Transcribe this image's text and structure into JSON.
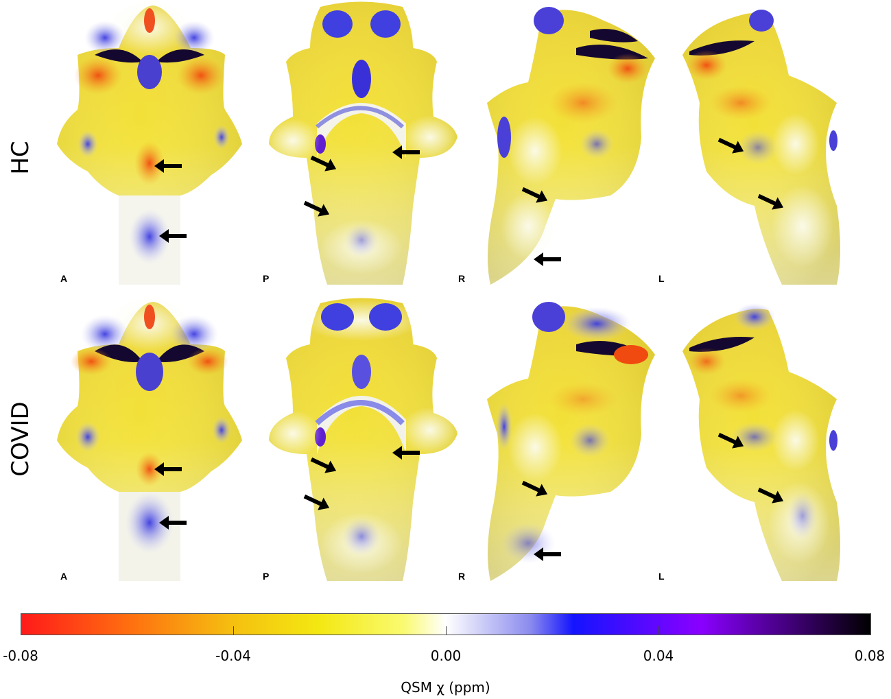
{
  "rows": [
    {
      "label": "HC",
      "views": [
        {
          "label": "A"
        },
        {
          "label": "P"
        },
        {
          "label": "R"
        },
        {
          "label": "L"
        }
      ]
    },
    {
      "label": "COVID",
      "views": [
        {
          "label": "A"
        },
        {
          "label": "P"
        },
        {
          "label": "R"
        },
        {
          "label": "L"
        }
      ]
    }
  ],
  "colorbar": {
    "title": "QSM χ (ppm)",
    "ticks": [
      "-0.08",
      "-0.04",
      "0.00",
      "0.04",
      "0.08"
    ],
    "min": -0.08,
    "max": 0.08,
    "colors": [
      "#ff1a1a",
      "#ff9a1a",
      "#f5e010",
      "#ffff30",
      "#ffffff",
      "#7f7fe8",
      "#1a1aff",
      "#8000ff",
      "#000000"
    ]
  }
}
